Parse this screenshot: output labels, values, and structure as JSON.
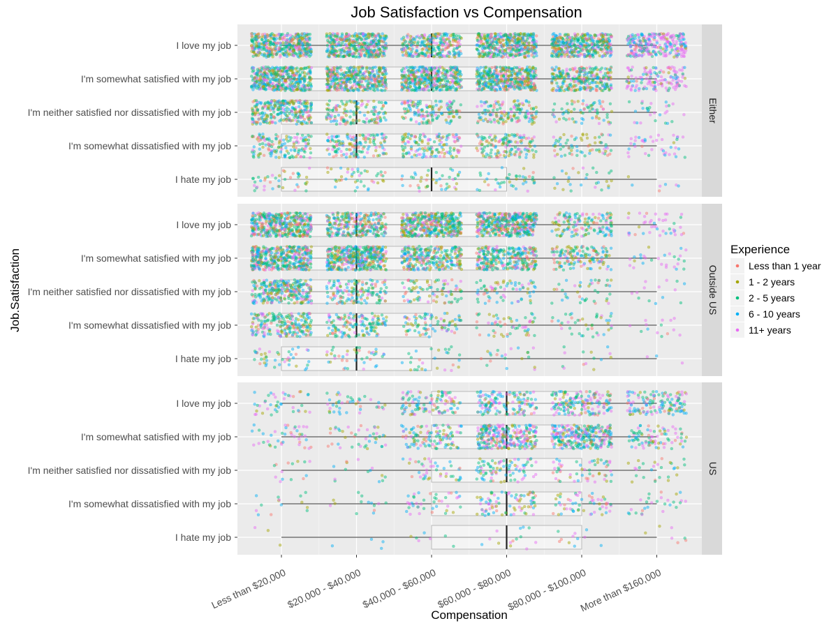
{
  "chart_data": {
    "type": "scatter",
    "subtype": "jittered strip plot with boxplot overlay, faceted",
    "title": "Job Satisfaction vs Compensation",
    "xlabel": "Compensation",
    "ylabel": "Job.Satisfaction",
    "x_categories": [
      "Less than $20,000",
      "$20,000 - $40,000",
      "$40,000 - $60,000",
      "$60,000 - $80,000",
      "$80,000 - $100,000",
      "More than $160,000"
    ],
    "y_categories": [
      "I love my job",
      "I'm somewhat satisfied with my job",
      "I'm neither satisfied nor dissatisfied with my job",
      "I'm somewhat dissatisfied with my job",
      "I hate my job"
    ],
    "legend": {
      "title": "Experience",
      "position": "right",
      "entries": [
        {
          "label": "Less than 1 year",
          "color": "#F8766D"
        },
        {
          "label": "1 - 2 years",
          "color": "#A3A500"
        },
        {
          "label": "2 - 5 years",
          "color": "#00BF7D"
        },
        {
          "label": "6 - 10 years",
          "color": "#00B0F6"
        },
        {
          "label": "11+ years",
          "color": "#E76BF3"
        }
      ]
    },
    "facets": [
      {
        "name": "Either",
        "density": [
          [
            3,
            3,
            2,
            3,
            3,
            2
          ],
          [
            3,
            3,
            3,
            3,
            2,
            1
          ],
          [
            2,
            1,
            1,
            1,
            0.5,
            0.2
          ],
          [
            1,
            1,
            1,
            1,
            0.5,
            0.3
          ],
          [
            0.3,
            0.3,
            0.3,
            0.3,
            0.2,
            0.05
          ]
        ],
        "boxplots": [
          {
            "q1": 3,
            "median": 3,
            "q3": 4,
            "lo": 1,
            "hi": 6
          },
          {
            "q1": 1.3,
            "median": 3,
            "q3": 4,
            "lo": 1,
            "hi": 6
          },
          {
            "q1": 1,
            "median": 2,
            "q3": 3,
            "lo": 1,
            "hi": 6
          },
          {
            "q1": 1,
            "median": 2,
            "q3": 4,
            "lo": 1,
            "hi": 6
          },
          {
            "q1": 1,
            "median": 3,
            "q3": 4,
            "lo": 1,
            "hi": 6
          }
        ]
      },
      {
        "name": "Outside US",
        "density": [
          [
            3,
            2,
            3,
            3,
            1,
            0.3
          ],
          [
            3,
            3,
            2,
            2,
            1,
            0.2
          ],
          [
            2,
            1,
            0.6,
            0.5,
            0.3,
            0.1
          ],
          [
            1.5,
            1,
            0.6,
            0.4,
            0.3,
            0.1
          ],
          [
            0.3,
            0.3,
            0.2,
            0.15,
            0.1,
            0.02
          ]
        ],
        "boxplots": [
          {
            "q1": 1,
            "median": 2,
            "q3": 4,
            "lo": 1,
            "hi": 6
          },
          {
            "q1": 1,
            "median": 2,
            "q3": 4,
            "lo": 1,
            "hi": 6
          },
          {
            "q1": 1,
            "median": 2,
            "q3": 3,
            "lo": 1,
            "hi": 6
          },
          {
            "q1": 1,
            "median": 2,
            "q3": 3,
            "lo": 1,
            "hi": 6
          },
          {
            "q1": 1,
            "median": 2,
            "q3": 3,
            "lo": 1,
            "hi": 6
          }
        ]
      },
      {
        "name": "US",
        "density": [
          [
            0.3,
            0.3,
            0.8,
            1,
            1.2,
            1
          ],
          [
            0.3,
            0.3,
            0.8,
            2,
            2,
            0.6
          ],
          [
            0.1,
            0.1,
            0.3,
            0.6,
            0.4,
            0.2
          ],
          [
            0.1,
            0.1,
            0.3,
            0.6,
            0.4,
            0.2
          ],
          [
            0.02,
            0.03,
            0.05,
            0.1,
            0.08,
            0.05
          ]
        ],
        "boxplots": [
          {
            "q1": 3,
            "median": 4,
            "q3": 5,
            "lo": 1,
            "hi": 6
          },
          {
            "q1": 3,
            "median": 4,
            "q3": 5,
            "lo": 1,
            "hi": 6
          },
          {
            "q1": 3,
            "median": 4,
            "q3": 5,
            "lo": 1,
            "hi": 6
          },
          {
            "q1": 3,
            "median": 4,
            "q3": 5,
            "lo": 1,
            "hi": 6
          },
          {
            "q1": 3,
            "median": 4,
            "q3": 5,
            "lo": 1,
            "hi": 6
          }
        ]
      }
    ]
  }
}
